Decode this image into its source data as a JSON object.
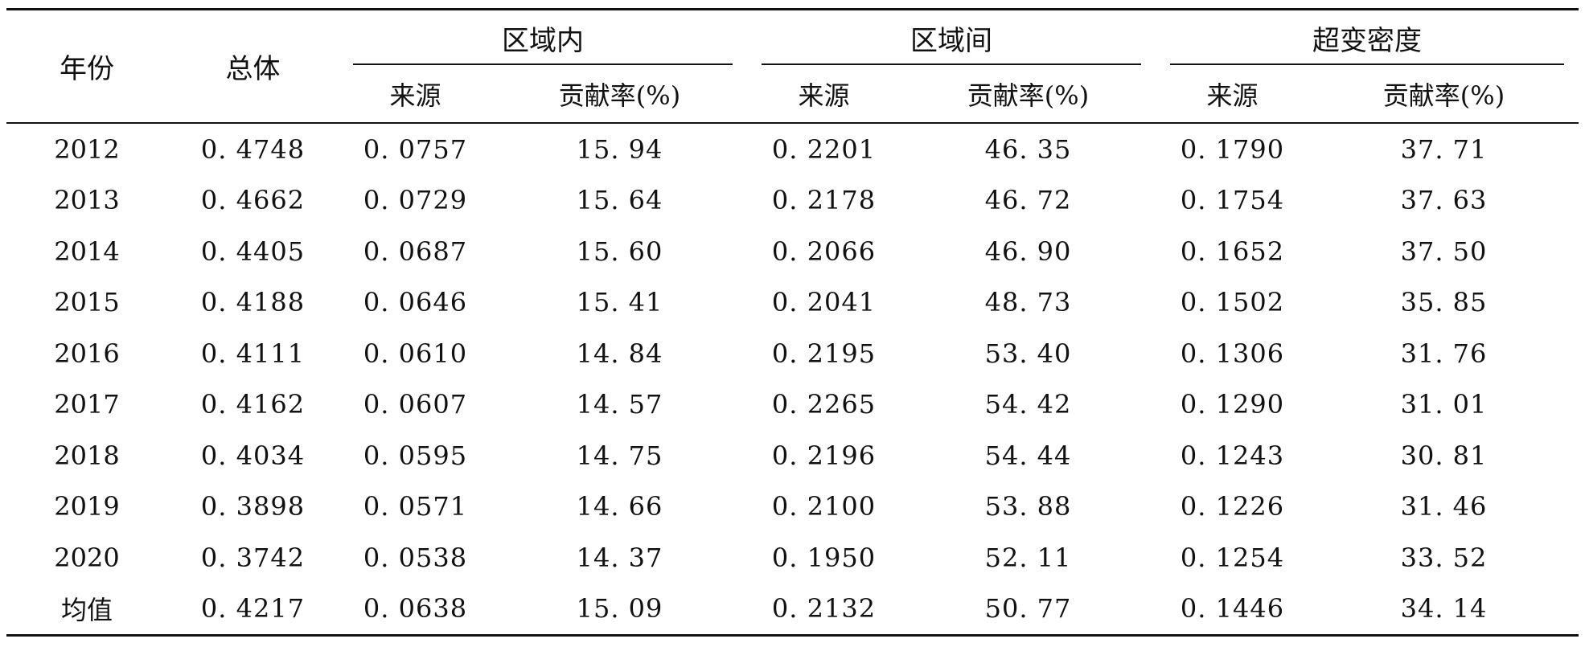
{
  "table": {
    "headers": {
      "year": "年份",
      "overall": "总体",
      "groups": [
        {
          "label": "区域内",
          "source": "来源",
          "contribution": "贡献率(%)"
        },
        {
          "label": "区域间",
          "source": "来源",
          "contribution": "贡献率(%)"
        },
        {
          "label": "超变密度",
          "source": "来源",
          "contribution": "贡献率(%)"
        }
      ]
    },
    "rows": [
      [
        "2012",
        "0. 4748",
        "0. 0757",
        "15. 94",
        "0. 2201",
        "46. 35",
        "0. 1790",
        "37. 71"
      ],
      [
        "2013",
        "0. 4662",
        "0. 0729",
        "15. 64",
        "0. 2178",
        "46. 72",
        "0. 1754",
        "37. 63"
      ],
      [
        "2014",
        "0. 4405",
        "0. 0687",
        "15. 60",
        "0. 2066",
        "46. 90",
        "0. 1652",
        "37. 50"
      ],
      [
        "2015",
        "0. 4188",
        "0. 0646",
        "15. 41",
        "0. 2041",
        "48. 73",
        "0. 1502",
        "35. 85"
      ],
      [
        "2016",
        "0. 4111",
        "0. 0610",
        "14. 84",
        "0. 2195",
        "53. 40",
        "0. 1306",
        "31. 76"
      ],
      [
        "2017",
        "0. 4162",
        "0. 0607",
        "14. 57",
        "0. 2265",
        "54. 42",
        "0. 1290",
        "31. 01"
      ],
      [
        "2018",
        "0. 4034",
        "0. 0595",
        "14. 75",
        "0. 2196",
        "54. 44",
        "0. 1243",
        "30. 81"
      ],
      [
        "2019",
        "0. 3898",
        "0. 0571",
        "14. 66",
        "0. 2100",
        "53. 88",
        "0. 1226",
        "31. 46"
      ],
      [
        "2020",
        "0. 3742",
        "0. 0538",
        "14. 37",
        "0. 1950",
        "52. 11",
        "0. 1254",
        "33. 52"
      ],
      [
        "均值",
        "0. 4217",
        "0. 0638",
        "15. 09",
        "0. 2132",
        "50. 77",
        "0. 1446",
        "34. 14"
      ]
    ]
  }
}
